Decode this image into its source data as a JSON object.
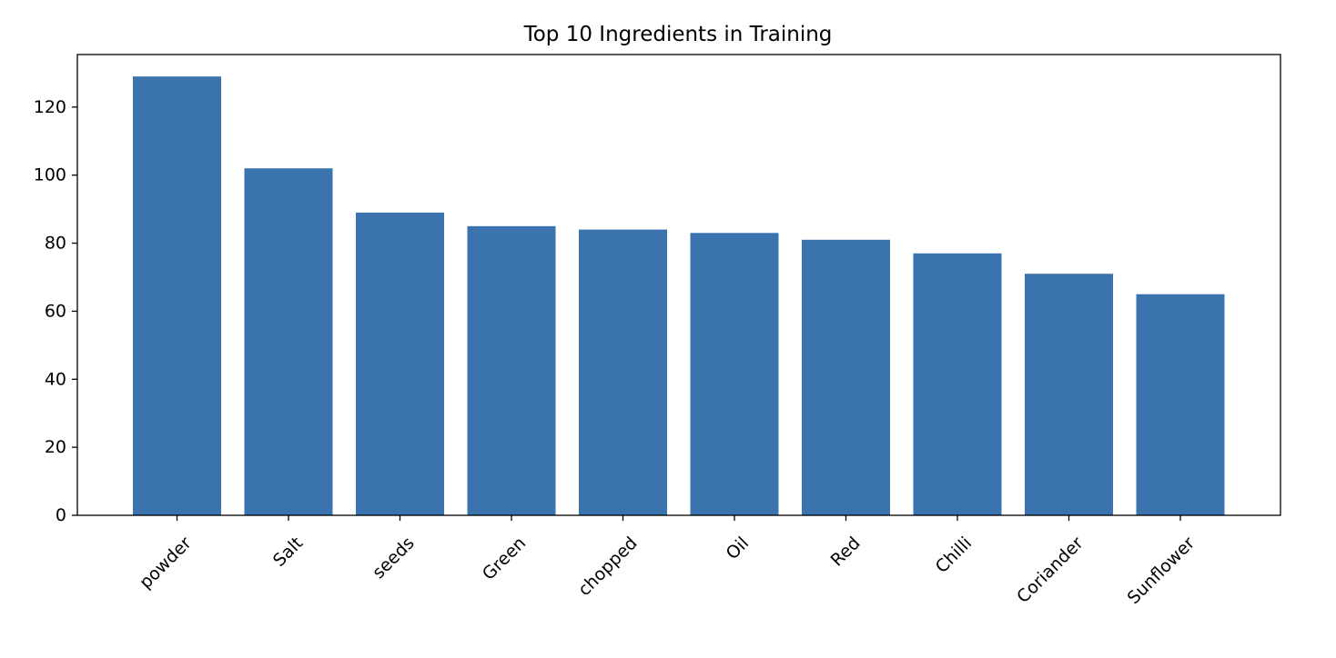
{
  "chart_data": {
    "type": "bar",
    "title": "Top 10 Ingredients in Training",
    "xlabel": "",
    "ylabel": "",
    "categories": [
      "powder",
      "Salt",
      "seeds",
      "Green",
      "chopped",
      "Oil",
      "Red",
      "Chilli",
      "Coriander",
      "Sunflower"
    ],
    "values": [
      129,
      102,
      89,
      85,
      84,
      83,
      81,
      77,
      71,
      65
    ],
    "ylim": [
      0,
      135.45
    ],
    "yticks": [
      0,
      20,
      40,
      60,
      80,
      100,
      120
    ],
    "ytick_labels": [
      "0",
      "20",
      "40",
      "60",
      "80",
      "100",
      "120"
    ],
    "x_tick_rotation_deg": 45,
    "grid": false,
    "legend": "none",
    "bar_color": "#3a73ad"
  }
}
